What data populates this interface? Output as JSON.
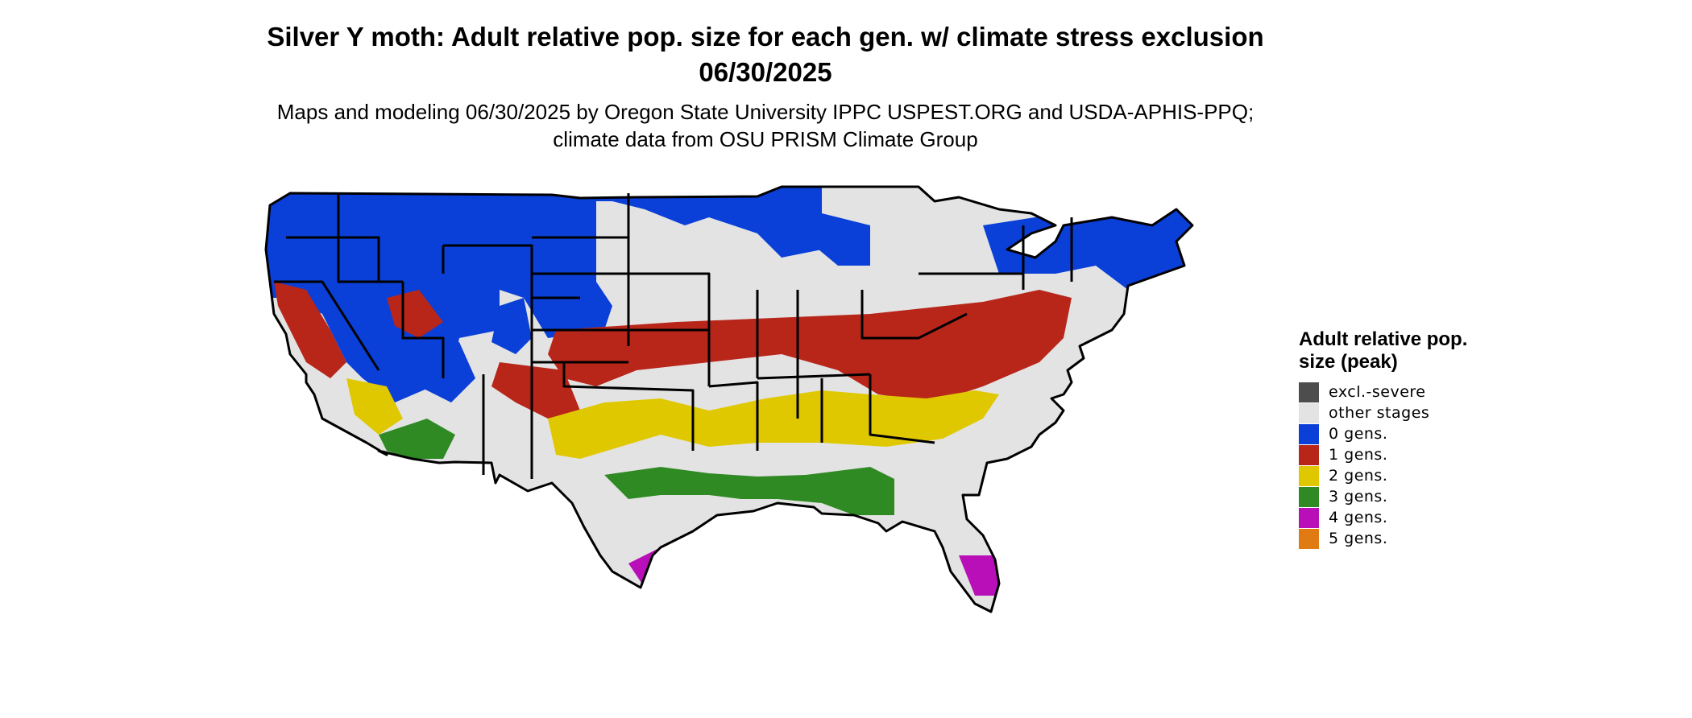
{
  "title": "Silver Y moth: Adult relative pop. size for each gen. w/ climate stress exclusion 06/30/2025",
  "subtitle": "Maps and modeling 06/30/2025 by Oregon State University IPPC USPEST.ORG and USDA-APHIS-PPQ; climate data from OSU PRISM Climate Group",
  "legend": {
    "title": "Adult relative pop. size (peak)",
    "items": [
      {
        "label": "excl.-severe",
        "color": "#4d4d4d"
      },
      {
        "label": "other stages",
        "color": "#e3e3e3"
      },
      {
        "label": "0 gens.",
        "color": "#0a3fd8"
      },
      {
        "label": "1 gens.",
        "color": "#b8261a"
      },
      {
        "label": "2 gens.",
        "color": "#e0c800"
      },
      {
        "label": "3 gens.",
        "color": "#2f8a23"
      },
      {
        "label": "4 gens.",
        "color": "#b80fb8"
      },
      {
        "label": "5 gens.",
        "color": "#e07a12"
      }
    ]
  },
  "map": {
    "region": "Contiguous United States",
    "state_border_color": "#000000"
  }
}
